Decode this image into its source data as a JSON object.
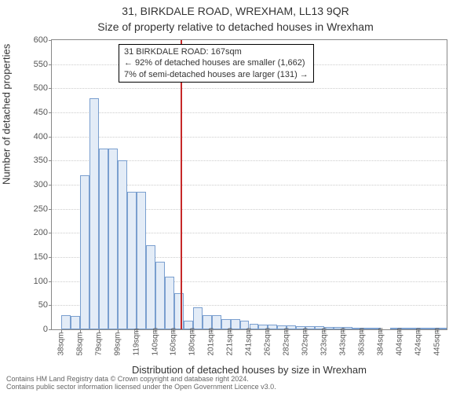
{
  "header": {
    "address": "31, BIRKDALE ROAD, WREXHAM, LL13 9QR",
    "title": "Size of property relative to detached houses in Wrexham"
  },
  "axes": {
    "ylabel": "Number of detached properties",
    "xlabel": "Distribution of detached houses by size in Wrexham",
    "ylim": [
      0,
      600
    ],
    "ytick_step": 50,
    "xtick_start": 38,
    "xtick_step": 20.3333,
    "xtick_count": 21,
    "xtick_suffix": "sqm",
    "tick_fontsize": 11,
    "label_fontsize": 13,
    "grid_color": "#cccccc"
  },
  "chart": {
    "type": "histogram",
    "bin_width": 10.1667,
    "bin_start": 28,
    "bar_fill": "#e3ecf7",
    "bar_stroke": "#7a9fcf",
    "values": [
      0,
      30,
      28,
      320,
      480,
      375,
      375,
      350,
      285,
      285,
      175,
      140,
      110,
      75,
      18,
      45,
      30,
      30,
      22,
      22,
      18,
      12,
      10,
      10,
      8,
      8,
      6,
      6,
      6,
      5,
      5,
      5,
      4,
      4,
      3,
      0,
      3,
      3,
      2,
      2,
      2,
      2
    ]
  },
  "reference": {
    "value_sqm": 167,
    "line_color": "#c62828",
    "annotation": {
      "line1": "31 BIRKDALE ROAD: 167sqm",
      "line2": "← 92% of detached houses are smaller (1,662)",
      "line3": "7% of semi-detached houses are larger (131) →"
    }
  },
  "footer": {
    "line1": "Contains HM Land Registry data © Crown copyright and database right 2024.",
    "line2": "Contains public sector information licensed under the Open Government Licence v3.0."
  },
  "colors": {
    "background": "#ffffff",
    "text": "#333333",
    "border": "#888888"
  }
}
